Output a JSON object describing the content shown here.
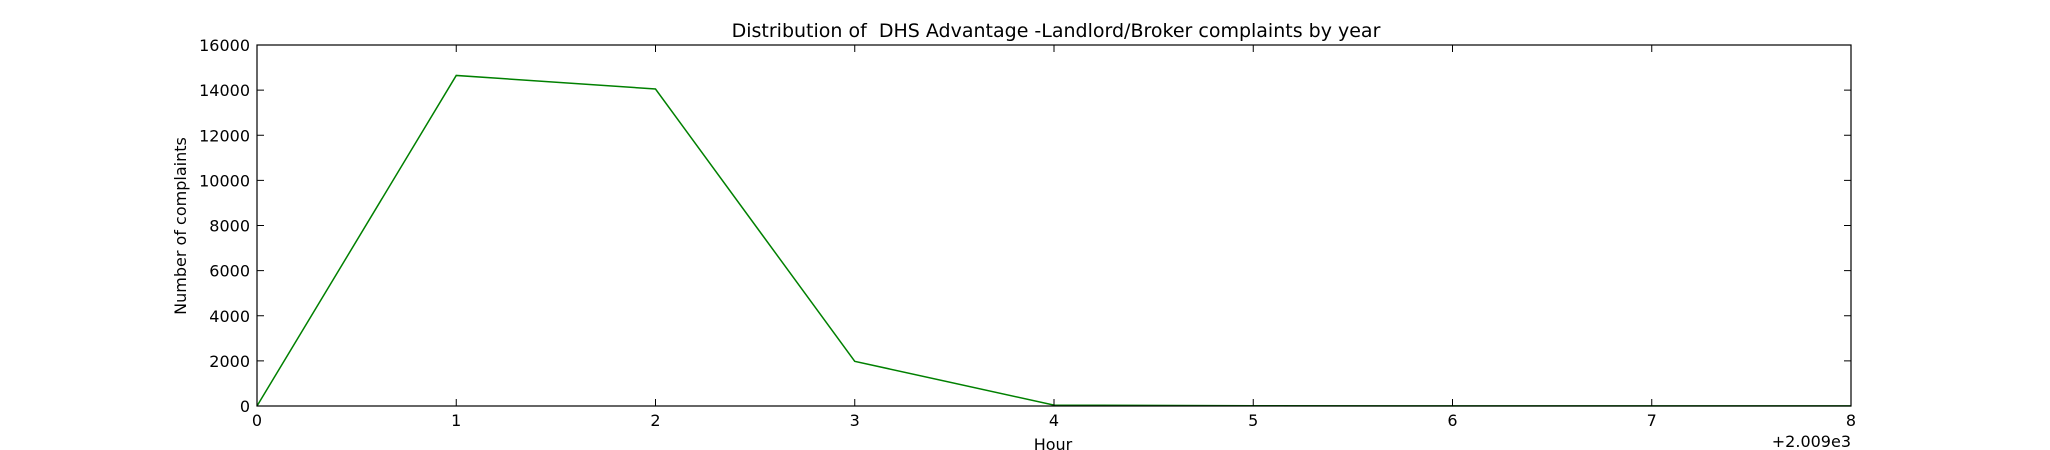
{
  "chart_data": {
    "type": "line",
    "title": "Distribution of  DHS Advantage -Landlord/Broker complaints by year",
    "xlabel": "Hour",
    "ylabel": "Number of complaints",
    "x_offset_label": "+2.009e3",
    "x": [
      0,
      1,
      2,
      3,
      4,
      5,
      6,
      7,
      8
    ],
    "xlim": [
      0,
      8
    ],
    "ylim": [
      0,
      16000
    ],
    "xticks": [
      0,
      1,
      2,
      3,
      4,
      5,
      6,
      7,
      8
    ],
    "yticks": [
      0,
      2000,
      4000,
      6000,
      8000,
      10000,
      12000,
      14000,
      16000
    ],
    "grid": false,
    "series": [
      {
        "color": "#008000",
        "values": [
          0,
          14650,
          14050,
          1980,
          40,
          10,
          5,
          5,
          3
        ]
      }
    ]
  }
}
